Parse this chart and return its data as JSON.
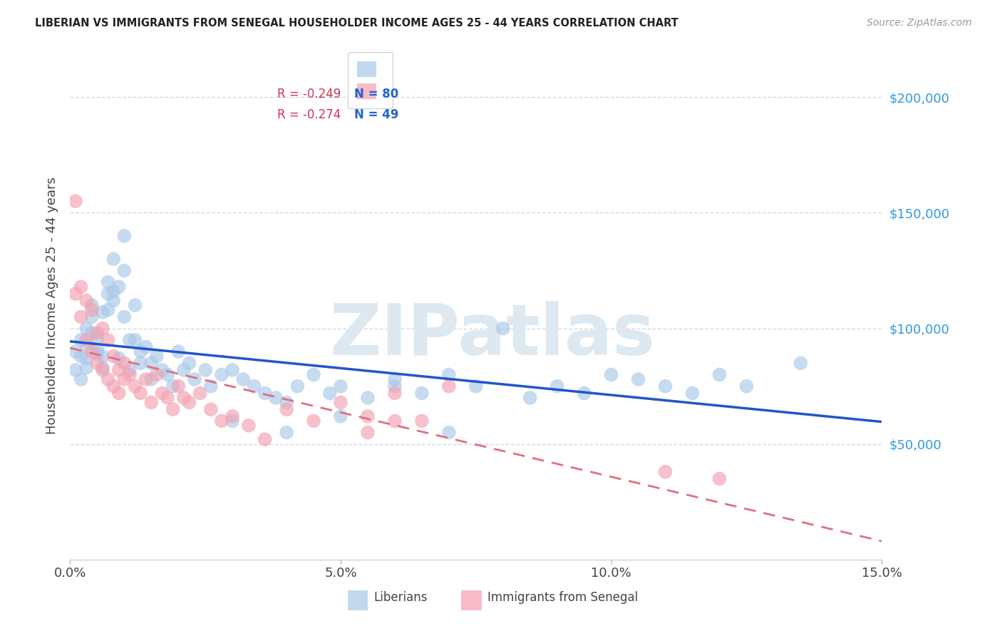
{
  "title": "LIBERIAN VS IMMIGRANTS FROM SENEGAL HOUSEHOLDER INCOME AGES 25 - 44 YEARS CORRELATION CHART",
  "source": "Source: ZipAtlas.com",
  "ylabel": "Householder Income Ages 25 - 44 years",
  "xlim": [
    0.0,
    0.15
  ],
  "ylim": [
    0,
    220000
  ],
  "yticks": [
    0,
    50000,
    100000,
    150000,
    200000
  ],
  "xtick_vals": [
    0.0,
    0.05,
    0.1,
    0.15
  ],
  "xtick_labels": [
    "0.0%",
    "5.0%",
    "10.0%",
    "15.0%"
  ],
  "liberian_color": "#a8c8e8",
  "senegal_color": "#f4a0b0",
  "liberian_line_color": "#2255cc",
  "senegal_line_color": "#e07080",
  "background_color": "#ffffff",
  "grid_color": "#d0d8e8",
  "legend_lib_label_r": "R = -0.249",
  "legend_lib_label_n": "N = 80",
  "legend_sen_label_r": "R = -0.274",
  "legend_sen_label_n": "N = 49",
  "watermark_text": "ZIPatlas",
  "watermark_color": "#dde8f0",
  "liberian_x": [
    0.001,
    0.001,
    0.002,
    0.002,
    0.002,
    0.003,
    0.003,
    0.003,
    0.003,
    0.004,
    0.004,
    0.004,
    0.005,
    0.005,
    0.005,
    0.006,
    0.006,
    0.006,
    0.007,
    0.007,
    0.007,
    0.008,
    0.008,
    0.008,
    0.009,
    0.009,
    0.01,
    0.01,
    0.01,
    0.011,
    0.011,
    0.012,
    0.012,
    0.013,
    0.013,
    0.014,
    0.015,
    0.015,
    0.016,
    0.017,
    0.018,
    0.019,
    0.02,
    0.021,
    0.022,
    0.023,
    0.025,
    0.026,
    0.028,
    0.03,
    0.032,
    0.034,
    0.036,
    0.038,
    0.04,
    0.042,
    0.045,
    0.048,
    0.05,
    0.055,
    0.06,
    0.065,
    0.07,
    0.075,
    0.08,
    0.085,
    0.09,
    0.095,
    0.1,
    0.105,
    0.11,
    0.115,
    0.12,
    0.125,
    0.135,
    0.03,
    0.04,
    0.05,
    0.06,
    0.07
  ],
  "liberian_y": [
    82000,
    90000,
    95000,
    88000,
    78000,
    100000,
    93000,
    87000,
    83000,
    110000,
    105000,
    98000,
    96000,
    91000,
    89000,
    107000,
    88000,
    83000,
    115000,
    120000,
    108000,
    116000,
    130000,
    112000,
    118000,
    87000,
    140000,
    125000,
    105000,
    95000,
    82000,
    110000,
    95000,
    90000,
    85000,
    92000,
    85000,
    78000,
    88000,
    82000,
    80000,
    75000,
    90000,
    82000,
    85000,
    78000,
    82000,
    75000,
    80000,
    82000,
    78000,
    75000,
    72000,
    70000,
    68000,
    75000,
    80000,
    72000,
    75000,
    70000,
    78000,
    72000,
    80000,
    75000,
    100000,
    70000,
    75000,
    72000,
    80000,
    78000,
    75000,
    72000,
    80000,
    75000,
    85000,
    60000,
    55000,
    62000,
    75000,
    55000
  ],
  "senegal_x": [
    0.001,
    0.001,
    0.002,
    0.002,
    0.003,
    0.003,
    0.004,
    0.004,
    0.005,
    0.005,
    0.006,
    0.006,
    0.007,
    0.007,
    0.008,
    0.008,
    0.009,
    0.009,
    0.01,
    0.01,
    0.011,
    0.012,
    0.013,
    0.014,
    0.015,
    0.016,
    0.017,
    0.018,
    0.019,
    0.02,
    0.021,
    0.022,
    0.024,
    0.026,
    0.028,
    0.03,
    0.033,
    0.036,
    0.04,
    0.045,
    0.05,
    0.055,
    0.06,
    0.065,
    0.07,
    0.055,
    0.06,
    0.11,
    0.12
  ],
  "senegal_y": [
    155000,
    115000,
    118000,
    105000,
    112000,
    95000,
    108000,
    90000,
    98000,
    85000,
    100000,
    82000,
    95000,
    78000,
    88000,
    75000,
    82000,
    72000,
    85000,
    78000,
    80000,
    75000,
    72000,
    78000,
    68000,
    80000,
    72000,
    70000,
    65000,
    75000,
    70000,
    68000,
    72000,
    65000,
    60000,
    62000,
    58000,
    52000,
    65000,
    60000,
    68000,
    62000,
    72000,
    60000,
    75000,
    55000,
    60000,
    38000,
    35000
  ]
}
